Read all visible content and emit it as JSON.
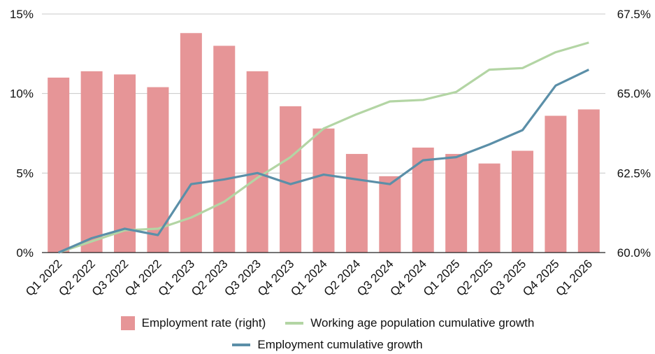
{
  "chart_data": {
    "type": "bar+line",
    "categories": [
      "Q1 2022",
      "Q2 2022",
      "Q3 2022",
      "Q4 2022",
      "Q1 2023",
      "Q2 2023",
      "Q3 2023",
      "Q4 2023",
      "Q1 2024",
      "Q2 2024",
      "Q3 2024",
      "Q4 2024",
      "Q1 2025",
      "Q2 2025",
      "Q3 2025",
      "Q4 2025",
      "Q1 2026"
    ],
    "left_axis": {
      "ylim": [
        0,
        15
      ],
      "ticks": [
        0,
        5,
        10,
        15
      ],
      "tick_labels": [
        "0%",
        "5%",
        "10%",
        "15%"
      ]
    },
    "right_axis": {
      "ylim": [
        60.0,
        67.5
      ],
      "ticks": [
        60.0,
        62.5,
        65.0,
        67.5
      ],
      "tick_labels": [
        "60.0%",
        "62.5%",
        "65.0%",
        "67.5%"
      ]
    },
    "series": [
      {
        "name": "Employment rate (right)",
        "type": "bar",
        "axis": "right",
        "color": "#e69597",
        "values": [
          65.5,
          65.7,
          65.6,
          65.2,
          66.9,
          66.5,
          65.7,
          64.6,
          63.9,
          63.1,
          62.4,
          63.3,
          63.1,
          62.8,
          63.2,
          64.3,
          64.5
        ]
      },
      {
        "name": "Working age population cumulative growth",
        "type": "line",
        "axis": "left",
        "color": "#b3d5a4",
        "values": [
          0.0,
          0.7,
          1.4,
          1.5,
          2.2,
          3.2,
          4.7,
          6.0,
          7.8,
          8.7,
          9.5,
          9.6,
          10.1,
          11.5,
          11.6,
          12.6,
          13.2
        ]
      },
      {
        "name": "Employment cumulative growth",
        "type": "line",
        "axis": "left",
        "color": "#5b8fa8",
        "values": [
          0.0,
          0.9,
          1.5,
          1.1,
          4.3,
          4.6,
          5.0,
          4.3,
          4.9,
          4.6,
          4.3,
          5.8,
          6.0,
          6.8,
          7.7,
          10.5,
          11.5
        ]
      }
    ],
    "grid": true,
    "legend_position": "bottom"
  }
}
